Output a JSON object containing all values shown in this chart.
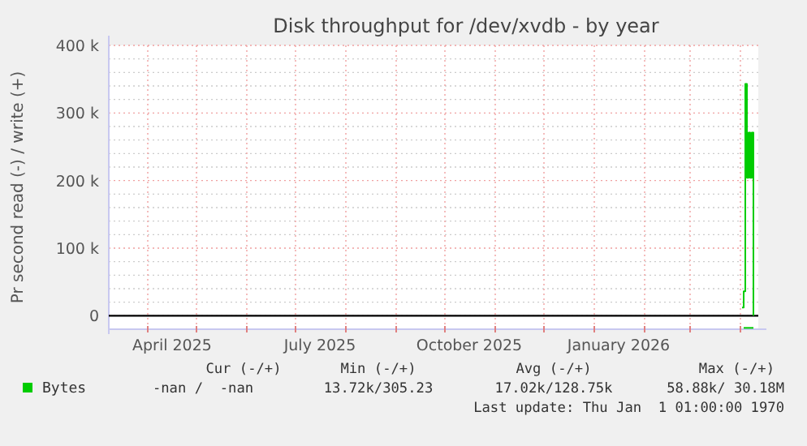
{
  "chart_data": {
    "type": "line",
    "title": "Disk throughput for /dev/xvdb - by year",
    "ylabel": "Pr second read (-) / write (+)",
    "xlim": [
      "2025-03-08",
      "2026-04-12"
    ],
    "xticks": [
      {
        "value": "2025-04-01",
        "label": null
      },
      {
        "value": "2025-05-01",
        "label": null
      },
      {
        "value": "2025-06-01",
        "label": null
      },
      {
        "value": "2025-07-01",
        "label": null
      },
      {
        "value": "2025-08-01",
        "label": null
      },
      {
        "value": "2025-09-01",
        "label": null
      },
      {
        "value": "2025-10-01",
        "label": null
      },
      {
        "value": "2025-11-01",
        "label": null
      },
      {
        "value": "2025-12-01",
        "label": null
      },
      {
        "value": "2026-01-01",
        "label": null
      },
      {
        "value": "2026-02-01",
        "label": null
      },
      {
        "value": "2026-03-01",
        "label": null
      },
      {
        "value": "2026-04-01",
        "label": null
      },
      {
        "value": "2025-04-16",
        "label": "April 2025"
      },
      {
        "value": "2025-07-16",
        "label": "July 2025"
      },
      {
        "value": "2025-10-16",
        "label": "October 2025"
      },
      {
        "value": "2026-01-16",
        "label": "January 2026"
      }
    ],
    "ylim": [
      -20000,
      400000
    ],
    "yticks": [
      {
        "value": 0,
        "label": "0"
      },
      {
        "value": 100000,
        "label": "100 k"
      },
      {
        "value": 200000,
        "label": "200 k"
      },
      {
        "value": 300000,
        "label": "300 k"
      },
      {
        "value": 400000,
        "label": "400 k"
      },
      {
        "value": 20000,
        "label": null
      },
      {
        "value": 40000,
        "label": null
      },
      {
        "value": 60000,
        "label": null
      },
      {
        "value": 80000,
        "label": null
      },
      {
        "value": 120000,
        "label": null
      },
      {
        "value": 140000,
        "label": null
      },
      {
        "value": 160000,
        "label": null
      },
      {
        "value": 180000,
        "label": null
      },
      {
        "value": 220000,
        "label": null
      },
      {
        "value": 240000,
        "label": null
      },
      {
        "value": 260000,
        "label": null
      },
      {
        "value": 280000,
        "label": null
      },
      {
        "value": 320000,
        "label": null
      },
      {
        "value": 340000,
        "label": null
      },
      {
        "value": 360000,
        "label": null
      },
      {
        "value": 380000,
        "label": null
      }
    ],
    "grid": true,
    "legend": "bottom",
    "line_style": "solid",
    "ref_lines": [
      {
        "axis": "y",
        "value": 0,
        "color": "#000000"
      }
    ],
    "series": [
      {
        "name": "Bytes",
        "color": "#00cc00",
        "x": [
          "2026-04-02",
          "2026-04-03",
          "2026-04-04",
          "2026-04-05",
          "2026-04-06",
          "2026-04-07",
          "2026-04-08",
          "2026-04-09"
        ],
        "values": [
          12000,
          36000,
          343000,
          204000,
          271000,
          204000,
          271000,
          0
        ]
      },
      {
        "color": "#00cc00",
        "x": [
          "2026-04-03",
          "2026-04-09"
        ],
        "values": [
          -18000,
          -18000
        ]
      }
    ],
    "annotations": [
      "Cur (-/+)",
      "Min (-/+)",
      "Avg (-/+)",
      "Max (-/+)",
      "-nan /  -nan",
      "13.72k/305.23",
      "17.02k/128.75k",
      "58.88k/ 30.18M",
      "Last update: Thu Jan  1 01:00:00 1970"
    ]
  }
}
